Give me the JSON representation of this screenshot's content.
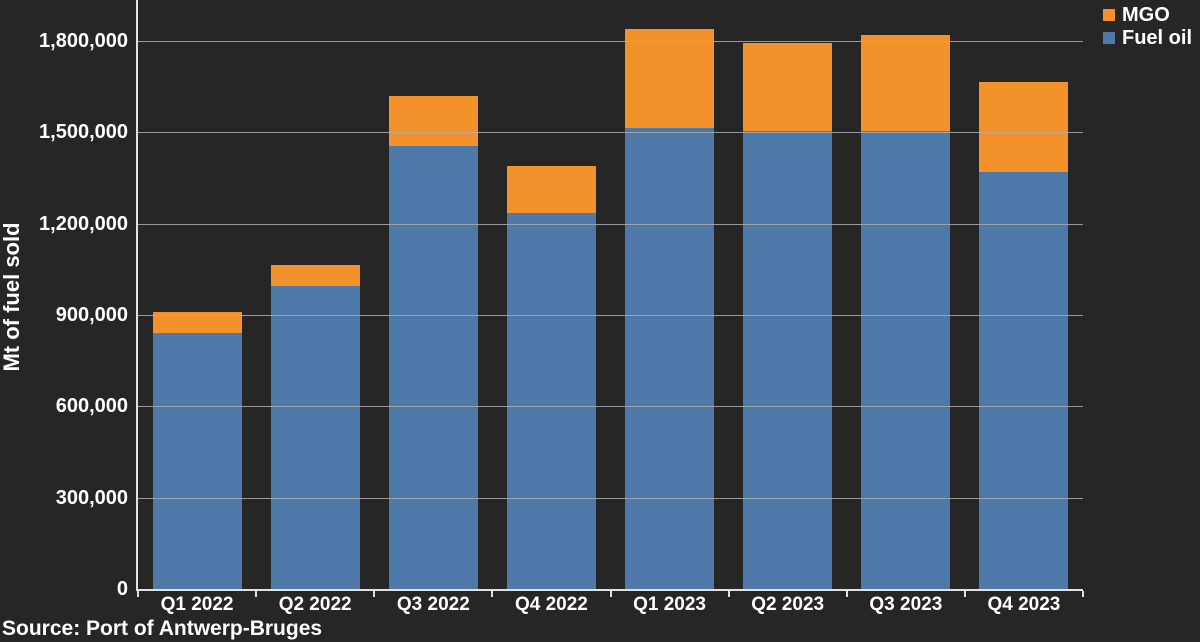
{
  "chart_data": {
    "type": "bar",
    "stacked": true,
    "title": "",
    "xlabel": "",
    "ylabel": "Mt of fuel sold",
    "categories": [
      "Q1 2022",
      "Q2 2022",
      "Q3 2022",
      "Q4 2022",
      "Q1 2023",
      "Q2 2023",
      "Q3 2023",
      "Q4 2023"
    ],
    "series": [
      {
        "name": "Fuel oil",
        "color": "#4E79A8",
        "values": [
          840000,
          995000,
          1455000,
          1235000,
          1515000,
          1505000,
          1505000,
          1370000
        ]
      },
      {
        "name": "MGO",
        "color": "#F3912B",
        "values": [
          70000,
          70000,
          165000,
          155000,
          325000,
          290000,
          315000,
          295000
        ]
      }
    ],
    "totals": [
      910000,
      1065000,
      1620000,
      1390000,
      1840000,
      1795000,
      1820000,
      1665000
    ],
    "ylim": [
      0,
      1935000
    ],
    "yticks": [
      0,
      300000,
      600000,
      900000,
      1200000,
      1500000,
      1800000
    ],
    "ytick_labels": [
      "0",
      "300,000",
      "600,000",
      "900,000",
      "1,200,000",
      "1,500,000",
      "1,800,000"
    ],
    "grid": true,
    "gridlines_over_bars": true,
    "legend_position": "top-right",
    "legend_order": [
      "MGO",
      "Fuel oil"
    ]
  },
  "legend": {
    "mgo_label": "MGO",
    "fuel_oil_label": "Fuel oil"
  },
  "ylabel": "Mt of fuel sold",
  "source_text": "Source: Port of Antwerp-Bruges",
  "colors": {
    "background": "#262626",
    "mgo": "#F3912B",
    "fuel_oil": "#4E79A8",
    "axis": "#E2E2E2",
    "gridline": "#ADADAD",
    "text": "#FFFFFF"
  }
}
